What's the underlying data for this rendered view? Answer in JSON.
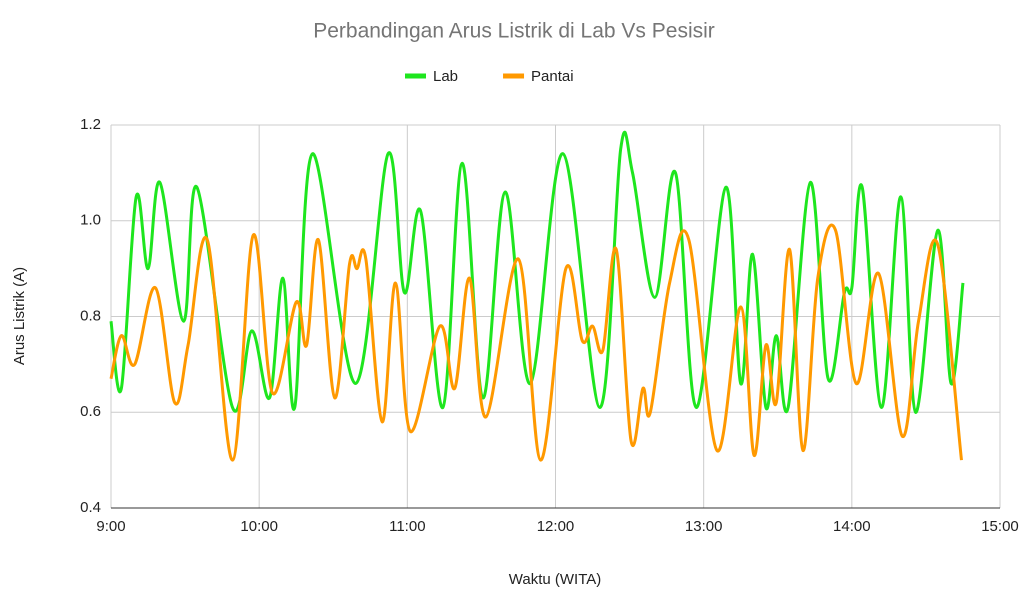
{
  "chart_data": {
    "type": "line",
    "title": "Perbandingan Arus Listrik di Lab Vs Pesisir",
    "x_label": "Waktu (WITA)",
    "y_label": "Arus Listrik (A)",
    "legend": "top",
    "grid": true,
    "smooth": true,
    "xlim": [
      9,
      15
    ],
    "xticks": [
      {
        "value": 9,
        "label": "9:00"
      },
      {
        "value": 10,
        "label": "10:00"
      },
      {
        "value": 11,
        "label": "11:00"
      },
      {
        "value": 12,
        "label": "12:00"
      },
      {
        "value": 13,
        "label": "13:00"
      },
      {
        "value": 14,
        "label": "14:00"
      },
      {
        "value": 15,
        "label": "15:00"
      }
    ],
    "ylim": [
      0.4,
      1.2
    ],
    "yticks": [
      0.4,
      0.6,
      0.8,
      {
        "value": 1.0,
        "label": "1.0"
      },
      1.2
    ],
    "series": [
      {
        "name": "Lab",
        "color": "#1ee61e",
        "x": [
          9.0,
          9.07,
          9.17,
          9.25,
          9.33,
          9.49,
          9.58,
          9.82,
          9.95,
          10.07,
          10.16,
          10.24,
          10.36,
          10.65,
          10.87,
          10.98,
          11.09,
          11.24,
          11.37,
          11.51,
          11.66,
          11.83,
          12.05,
          12.3,
          12.44,
          12.52,
          12.67,
          12.81,
          12.95,
          13.15,
          13.25,
          13.33,
          13.42,
          13.49,
          13.57,
          13.72,
          13.84,
          13.95,
          14.0,
          14.07,
          14.2,
          14.33,
          14.43,
          14.58,
          14.67,
          14.75
        ],
        "values": [
          0.79,
          0.65,
          1.05,
          0.9,
          1.08,
          0.79,
          1.07,
          0.61,
          0.77,
          0.63,
          0.88,
          0.61,
          1.14,
          0.66,
          1.14,
          0.85,
          1.02,
          0.61,
          1.12,
          0.63,
          1.06,
          0.66,
          1.14,
          0.61,
          1.15,
          1.1,
          0.84,
          1.1,
          0.61,
          1.07,
          0.66,
          0.93,
          0.61,
          0.76,
          0.61,
          1.08,
          0.67,
          0.85,
          0.86,
          1.07,
          0.61,
          1.05,
          0.6,
          0.98,
          0.66,
          0.87
        ]
      },
      {
        "name": "Pantai",
        "color": "#ff9900",
        "x": [
          9.0,
          9.07,
          9.16,
          9.3,
          9.43,
          9.52,
          9.65,
          9.82,
          9.96,
          10.09,
          10.25,
          10.32,
          10.4,
          10.51,
          10.61,
          10.66,
          10.72,
          10.83,
          10.92,
          11.02,
          11.22,
          11.32,
          11.42,
          11.53,
          11.75,
          11.9,
          12.07,
          12.18,
          12.25,
          12.32,
          12.41,
          12.51,
          12.59,
          12.64,
          12.77,
          12.9,
          13.09,
          13.25,
          13.34,
          13.42,
          13.49,
          13.58,
          13.67,
          13.77,
          13.89,
          14.03,
          14.18,
          14.34,
          14.45,
          14.58,
          14.74
        ],
        "values": [
          0.67,
          0.76,
          0.7,
          0.86,
          0.62,
          0.74,
          0.96,
          0.5,
          0.97,
          0.64,
          0.83,
          0.74,
          0.96,
          0.63,
          0.91,
          0.9,
          0.92,
          0.58,
          0.87,
          0.56,
          0.78,
          0.65,
          0.88,
          0.59,
          0.92,
          0.5,
          0.9,
          0.75,
          0.78,
          0.73,
          0.94,
          0.54,
          0.65,
          0.6,
          0.87,
          0.96,
          0.52,
          0.82,
          0.51,
          0.74,
          0.62,
          0.94,
          0.52,
          0.88,
          0.98,
          0.66,
          0.89,
          0.55,
          0.79,
          0.95,
          0.5
        ]
      }
    ]
  }
}
